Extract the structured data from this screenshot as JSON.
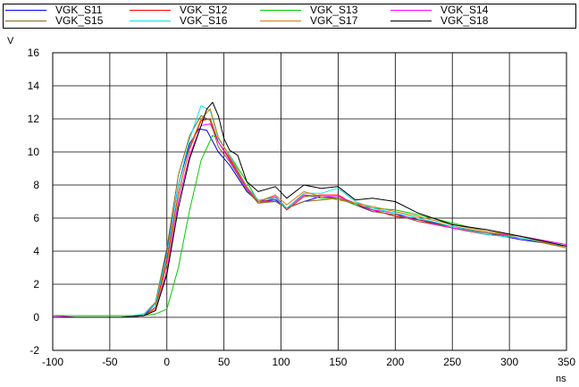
{
  "chart_data": {
    "type": "line",
    "xlabel": "ns",
    "ylabel": "V",
    "xlim": [
      -100,
      350
    ],
    "ylim": [
      -2,
      16
    ],
    "x_ticks": [
      "-100",
      "-50",
      "0",
      "50",
      "100",
      "150",
      "200",
      "250",
      "300",
      "350"
    ],
    "y_ticks": [
      "-2",
      "0",
      "2",
      "4",
      "6",
      "8",
      "10",
      "12",
      "14",
      "16"
    ],
    "grid": true,
    "legend_position": "top",
    "series": [
      {
        "name": "VGK_S11",
        "color": "#0000ff",
        "x": [
          -100,
          -80,
          -60,
          -40,
          -20,
          -10,
          0,
          10,
          20,
          28,
          35,
          45,
          55,
          70,
          80,
          95,
          105,
          120,
          135,
          150,
          165,
          180,
          200,
          220,
          250,
          280,
          310,
          350
        ],
        "y": [
          0,
          0,
          0,
          0,
          0.1,
          0.8,
          4.0,
          8.0,
          10.5,
          11.4,
          11.3,
          10.0,
          9.2,
          7.6,
          7.0,
          7.1,
          6.6,
          7.0,
          7.3,
          7.2,
          6.8,
          6.4,
          6.2,
          5.9,
          5.5,
          5.1,
          4.7,
          4.3
        ]
      },
      {
        "name": "VGK_S12",
        "color": "#ff0000",
        "x": [
          -100,
          -80,
          -60,
          -40,
          -20,
          -10,
          0,
          10,
          20,
          30,
          38,
          45,
          55,
          70,
          80,
          95,
          105,
          120,
          135,
          150,
          165,
          180,
          200,
          220,
          250,
          280,
          310,
          350
        ],
        "y": [
          0,
          0,
          0,
          0,
          0.1,
          0.6,
          3.5,
          7.5,
          10.2,
          11.9,
          12.0,
          10.6,
          9.6,
          7.8,
          6.9,
          7.2,
          6.5,
          7.3,
          7.4,
          7.4,
          6.8,
          6.5,
          6.1,
          5.9,
          5.4,
          5.0,
          4.8,
          4.2
        ]
      },
      {
        "name": "VGK_S13",
        "color": "#00cc00",
        "x": [
          -100,
          -80,
          -60,
          -40,
          -20,
          -10,
          0,
          10,
          20,
          30,
          40,
          45,
          55,
          70,
          80,
          95,
          105,
          120,
          135,
          150,
          165,
          180,
          200,
          220,
          250,
          280,
          310,
          350
        ],
        "y": [
          0.1,
          0.1,
          0.1,
          0.1,
          0.1,
          0.2,
          0.5,
          3.0,
          6.5,
          9.5,
          11.0,
          10.8,
          9.8,
          8.2,
          7.0,
          7.0,
          6.6,
          7.4,
          7.2,
          7.2,
          6.8,
          6.6,
          6.5,
          6.2,
          5.7,
          5.2,
          4.9,
          4.2
        ]
      },
      {
        "name": "VGK_S14",
        "color": "#ff00ff",
        "x": [
          -100,
          -80,
          -60,
          -40,
          -20,
          -10,
          0,
          10,
          20,
          30,
          38,
          45,
          55,
          70,
          80,
          95,
          105,
          120,
          135,
          150,
          165,
          180,
          200,
          220,
          250,
          280,
          310,
          350
        ],
        "y": [
          0.1,
          0,
          0,
          0,
          0.1,
          0.4,
          2.8,
          7.0,
          9.8,
          11.6,
          11.7,
          10.6,
          9.5,
          7.8,
          7.0,
          7.3,
          6.6,
          7.4,
          7.3,
          7.3,
          6.9,
          6.5,
          6.3,
          5.8,
          5.4,
          5.1,
          4.9,
          4.4
        ]
      },
      {
        "name": "VGK_S15",
        "color": "#8b6914",
        "x": [
          -100,
          -80,
          -60,
          -40,
          -20,
          -10,
          0,
          10,
          20,
          30,
          38,
          45,
          55,
          70,
          80,
          95,
          105,
          120,
          135,
          150,
          165,
          180,
          200,
          220,
          250,
          280,
          310,
          350
        ],
        "y": [
          0,
          0,
          0,
          0,
          0.2,
          0.9,
          4.2,
          8.6,
          11.0,
          12.2,
          11.9,
          10.3,
          9.4,
          7.7,
          6.9,
          7.0,
          6.6,
          7.0,
          7.1,
          7.2,
          6.9,
          6.4,
          6.2,
          5.8,
          5.5,
          5.1,
          4.8,
          4.2
        ]
      },
      {
        "name": "VGK_S16",
        "color": "#00e5e5",
        "x": [
          -100,
          -80,
          -60,
          -40,
          -20,
          -10,
          0,
          10,
          20,
          30,
          38,
          45,
          55,
          70,
          80,
          95,
          105,
          120,
          135,
          150,
          165,
          180,
          200,
          220,
          250,
          280,
          310,
          350
        ],
        "y": [
          0,
          0,
          0,
          0,
          0.2,
          0.8,
          3.8,
          8.0,
          10.8,
          12.8,
          12.5,
          10.8,
          9.8,
          7.9,
          7.1,
          7.2,
          6.6,
          7.5,
          7.5,
          7.8,
          7.0,
          6.6,
          6.3,
          6.0,
          5.5,
          5.0,
          4.8,
          4.3
        ]
      },
      {
        "name": "VGK_S17",
        "color": "#d08000",
        "x": [
          -100,
          -80,
          -60,
          -40,
          -20,
          -10,
          0,
          10,
          20,
          30,
          38,
          45,
          55,
          70,
          80,
          95,
          105,
          120,
          135,
          150,
          165,
          180,
          200,
          220,
          250,
          280,
          310,
          350
        ],
        "y": [
          0,
          0,
          0,
          0,
          0.1,
          0.5,
          3.2,
          7.4,
          10.3,
          12.0,
          12.6,
          10.9,
          9.7,
          7.9,
          7.0,
          7.4,
          6.8,
          7.6,
          7.3,
          7.1,
          6.9,
          6.7,
          6.4,
          6.1,
          5.6,
          5.2,
          4.9,
          4.2
        ]
      },
      {
        "name": "VGK_S18",
        "color": "#000000",
        "x": [
          -100,
          -80,
          -60,
          -40,
          -20,
          -10,
          0,
          10,
          20,
          30,
          35,
          40,
          45,
          50,
          55,
          62,
          70,
          80,
          95,
          105,
          120,
          135,
          150,
          165,
          180,
          200,
          220,
          250,
          280,
          310,
          350
        ],
        "y": [
          0,
          0,
          0,
          0,
          0.1,
          0.4,
          2.6,
          6.6,
          9.6,
          11.6,
          12.6,
          13.0,
          12.2,
          10.8,
          10.1,
          9.8,
          8.2,
          7.6,
          7.9,
          7.2,
          8.0,
          7.8,
          7.9,
          7.1,
          7.2,
          7.0,
          6.3,
          5.6,
          5.3,
          4.9,
          4.3
        ]
      }
    ]
  }
}
